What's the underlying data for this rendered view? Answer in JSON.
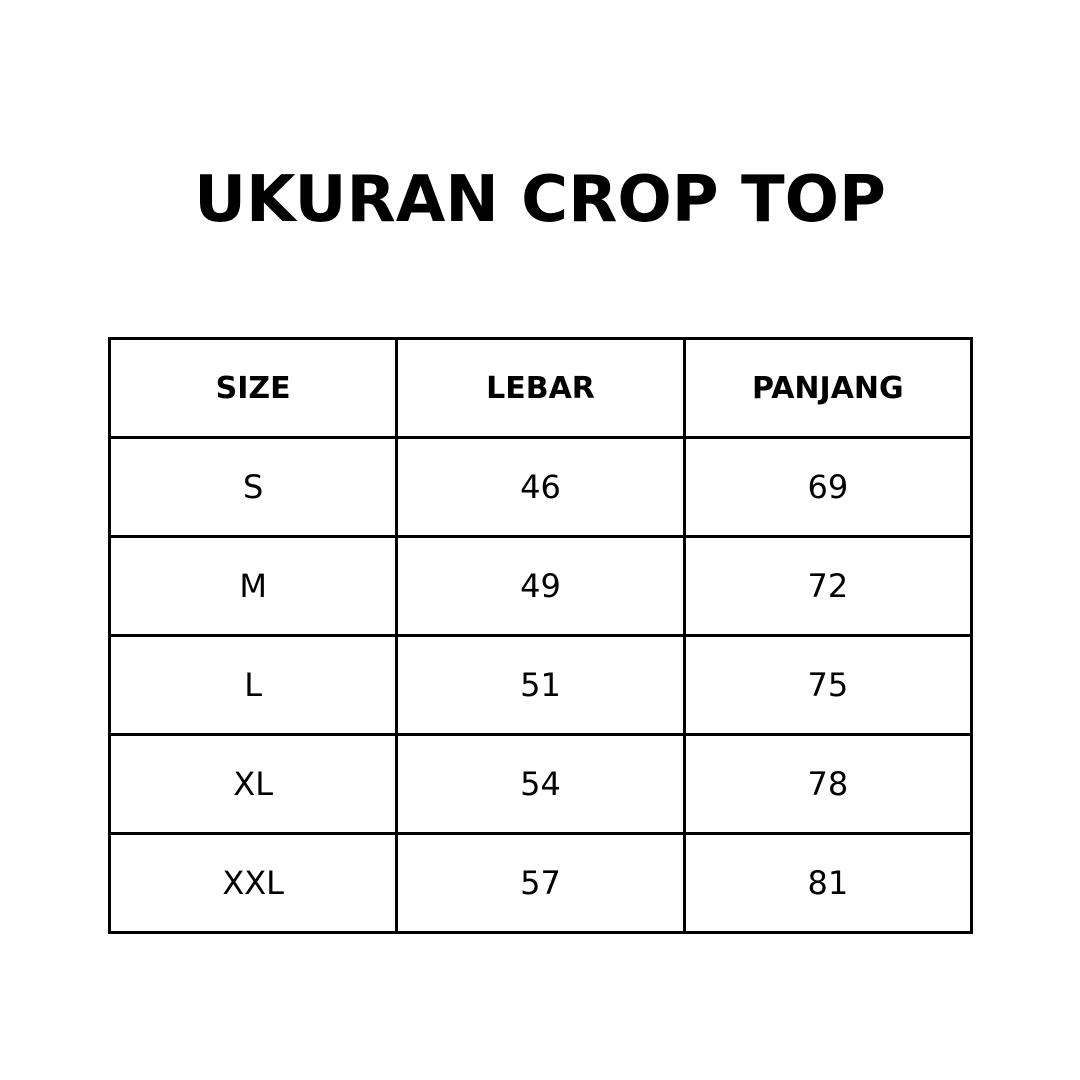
{
  "title": "UKURAN CROP TOP",
  "table": {
    "headers": [
      "SIZE",
      "LEBAR",
      "PANJANG"
    ],
    "rows": [
      [
        "S",
        "46",
        "69"
      ],
      [
        "M",
        "49",
        "72"
      ],
      [
        "L",
        "51",
        "75"
      ],
      [
        "XL",
        "54",
        "78"
      ],
      [
        "XXL",
        "57",
        "81"
      ]
    ]
  }
}
